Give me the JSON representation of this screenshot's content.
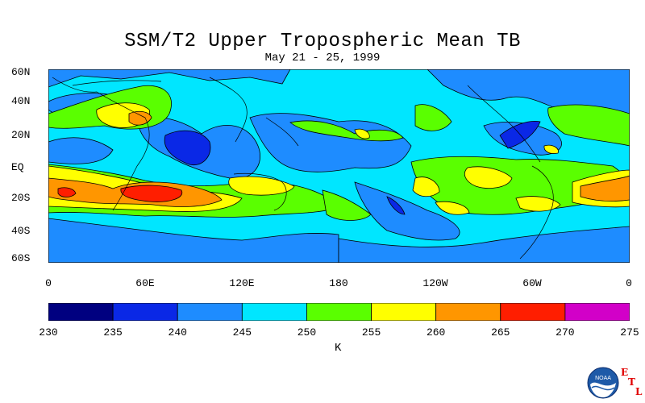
{
  "title": "SSM/T2 Upper Tropospheric Mean TB",
  "subtitle": "May 21 - 25, 1999",
  "lat_labels": [
    "60N",
    "40N",
    "20N",
    "EQ",
    "20S",
    "40S",
    "60S"
  ],
  "lon_labels": [
    "0",
    "60E",
    "120E",
    "180",
    "120W",
    "60W",
    "0"
  ],
  "colorbar": {
    "ticks": [
      "230",
      "235",
      "240",
      "245",
      "250",
      "255",
      "260",
      "265",
      "270",
      "275"
    ],
    "unit": "K",
    "colors": [
      "#000080",
      "#0a28e6",
      "#1e8cff",
      "#00e6ff",
      "#5aff00",
      "#ffff00",
      "#ff9600",
      "#ff1e00",
      "#d200c8"
    ]
  },
  "logo": {
    "text": "NOAA",
    "letters": [
      "E",
      "T",
      "L"
    ]
  }
}
